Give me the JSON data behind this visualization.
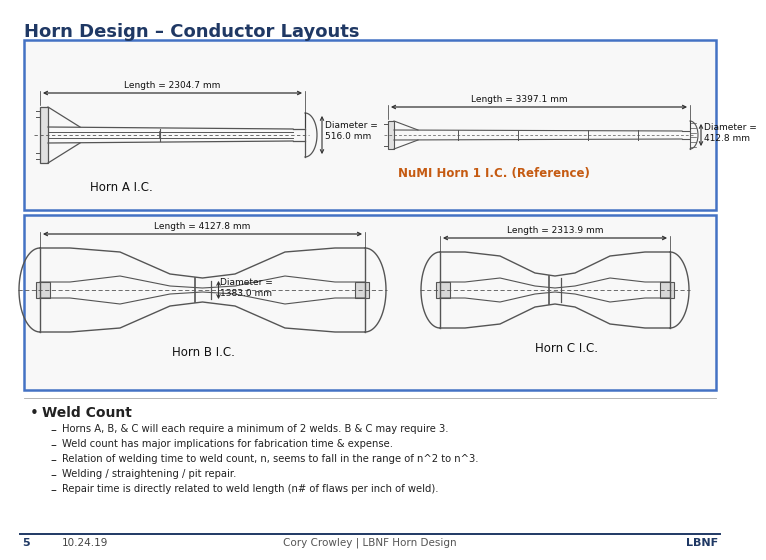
{
  "title": "Horn Design – Conductor Layouts",
  "title_color": "#1F3864",
  "title_fontsize": 13,
  "bg_color": "#FFFFFF",
  "box_border_color": "#4472C4",
  "bullet_title": "Weld Count",
  "bullets": [
    "Horns A, B, & C will each require a minimum of 2 welds. B & C may require 3.",
    "Weld count has major implications for fabrication time & expense.",
    "Relation of welding time to weld count, n, seems to fall in the range of n^2 to n^3.",
    "Welding / straightening / pit repair.",
    "Repair time is directly related to weld length (n# of flaws per inch of weld)."
  ],
  "footer_page": "5",
  "footer_date": "10.24.19",
  "footer_center": "Cory Crowley | LBNF Horn Design",
  "footer_right": "LBNF",
  "footer_color": "#1F3864",
  "horn_a_length": "Length = 2304.7 mm",
  "horn_a_diam": "Diameter =\n516.0 mm",
  "horn_a_label": "Horn A I.C.",
  "numi_length": "Length = 3397.1 mm",
  "numi_diam": "Diameter =\n412.8 mm",
  "numi_label": "NuMI Horn 1 I.C. (Reference)",
  "numi_label_color": "#C55A11",
  "horn_b_length": "Length = 4127.8 mm",
  "horn_b_label": "Horn B I.C.",
  "horn_c_length": "Length = 2313.9 mm",
  "horn_c_label": "Horn C I.C.",
  "bc_diam": "Diameter =\n1383.0 mm",
  "diagram_bg": "#FFFFFF",
  "diagram_line_color": "#555555",
  "dim_line_color": "#333333"
}
